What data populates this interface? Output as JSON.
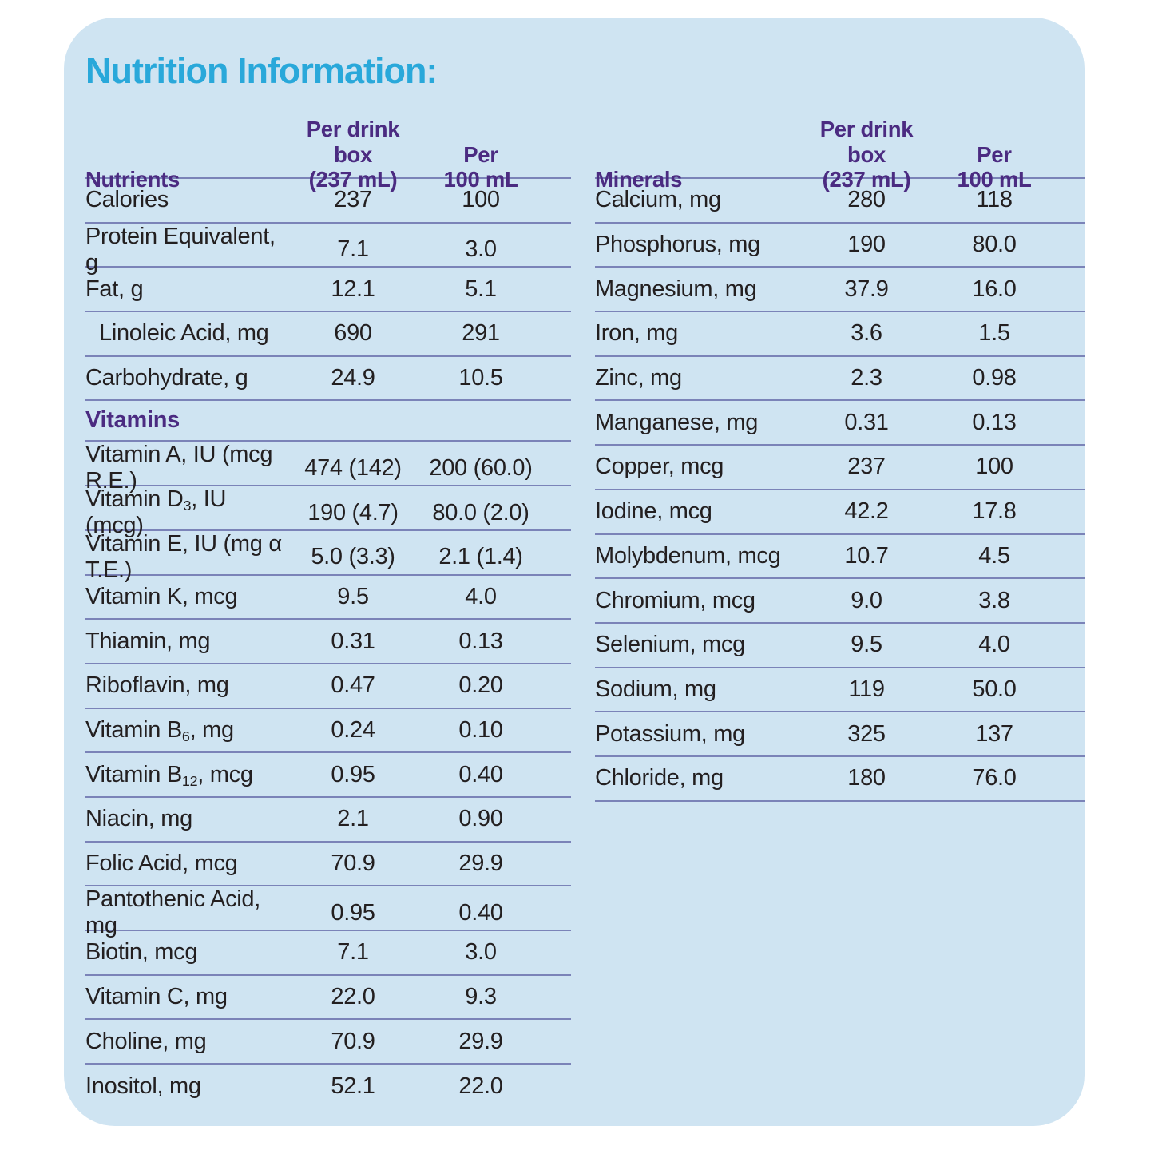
{
  "title": "Nutrition Information:",
  "colors": {
    "card_background": "#cfe4f2",
    "title_accent": "#29a8da",
    "header_purple": "#4b2b81",
    "divider": "#7b83b8",
    "body_text": "#231f20"
  },
  "left_table": {
    "header": {
      "col0": "Nutrients",
      "col1_line1": "Per drink box",
      "col1_line2": "(237 mL)",
      "col2_line1": "Per",
      "col2_line2": "100 mL"
    },
    "rows": [
      {
        "pre": "Calories",
        "v1": "237",
        "v2": "100"
      },
      {
        "pre": "Protein Equivalent, g",
        "v1": "7.1",
        "v2": "3.0"
      },
      {
        "pre": "Fat, g",
        "v1": "12.1",
        "v2": "5.1"
      },
      {
        "pre": "Linoleic Acid, mg",
        "indent": true,
        "v1": "690",
        "v2": "291"
      },
      {
        "pre": "Carbohydrate, g",
        "v1": "24.9",
        "v2": "10.5"
      }
    ],
    "section_label": "Vitamins",
    "vitamin_rows": [
      {
        "pre": "Vitamin A, IU (mcg R.E.)",
        "v1": "474 (142)",
        "v2": "200 (60.0)"
      },
      {
        "pre": "Vitamin D",
        "sub": "3",
        "post": ", IU (mcg)",
        "v1": "190 (4.7)",
        "v2": "80.0 (2.0)"
      },
      {
        "pre": "Vitamin E, IU (mg α T.E.)",
        "v1": "5.0 (3.3)",
        "v2": "2.1 (1.4)"
      },
      {
        "pre": "Vitamin K, mcg",
        "v1": "9.5",
        "v2": "4.0"
      },
      {
        "pre": "Thiamin, mg",
        "v1": "0.31",
        "v2": "0.13"
      },
      {
        "pre": "Riboflavin, mg",
        "v1": "0.47",
        "v2": "0.20"
      },
      {
        "pre": "Vitamin B",
        "sub": "6",
        "post": ", mg",
        "v1": "0.24",
        "v2": "0.10"
      },
      {
        "pre": "Vitamin B",
        "sub": "12",
        "post": ", mcg",
        "v1": "0.95",
        "v2": "0.40"
      },
      {
        "pre": "Niacin, mg",
        "v1": "2.1",
        "v2": "0.90"
      },
      {
        "pre": "Folic Acid, mcg",
        "v1": "70.9",
        "v2": "29.9"
      },
      {
        "pre": "Pantothenic Acid, mg",
        "v1": "0.95",
        "v2": "0.40"
      },
      {
        "pre": "Biotin, mcg",
        "v1": "7.1",
        "v2": "3.0"
      },
      {
        "pre": "Vitamin C, mg",
        "v1": "22.0",
        "v2": "9.3"
      },
      {
        "pre": "Choline, mg",
        "v1": "70.9",
        "v2": "29.9"
      },
      {
        "pre": "Inositol, mg",
        "v1": "52.1",
        "v2": "22.0"
      }
    ]
  },
  "right_table": {
    "header": {
      "col0": "Minerals",
      "col1_line1": "Per drink box",
      "col1_line2": "(237 mL)",
      "col2_line1": "Per",
      "col2_line2": "100 mL"
    },
    "rows": [
      {
        "pre": "Calcium, mg",
        "v1": "280",
        "v2": "118"
      },
      {
        "pre": "Phosphorus, mg",
        "v1": "190",
        "v2": "80.0"
      },
      {
        "pre": "Magnesium, mg",
        "v1": "37.9",
        "v2": "16.0"
      },
      {
        "pre": "Iron, mg",
        "v1": "3.6",
        "v2": "1.5"
      },
      {
        "pre": "Zinc, mg",
        "v1": "2.3",
        "v2": "0.98"
      },
      {
        "pre": "Manganese, mg",
        "v1": "0.31",
        "v2": "0.13"
      },
      {
        "pre": "Copper, mcg",
        "v1": "237",
        "v2": "100"
      },
      {
        "pre": "Iodine, mcg",
        "v1": "42.2",
        "v2": "17.8"
      },
      {
        "pre": "Molybdenum, mcg",
        "v1": "10.7",
        "v2": "4.5"
      },
      {
        "pre": "Chromium, mcg",
        "v1": "9.0",
        "v2": "3.8"
      },
      {
        "pre": "Selenium, mcg",
        "v1": "9.5",
        "v2": "4.0"
      },
      {
        "pre": "Sodium, mg",
        "v1": "119",
        "v2": "50.0"
      },
      {
        "pre": "Potassium, mg",
        "v1": "325",
        "v2": "137"
      },
      {
        "pre": "Chloride, mg",
        "v1": "180",
        "v2": "76.0"
      }
    ]
  }
}
